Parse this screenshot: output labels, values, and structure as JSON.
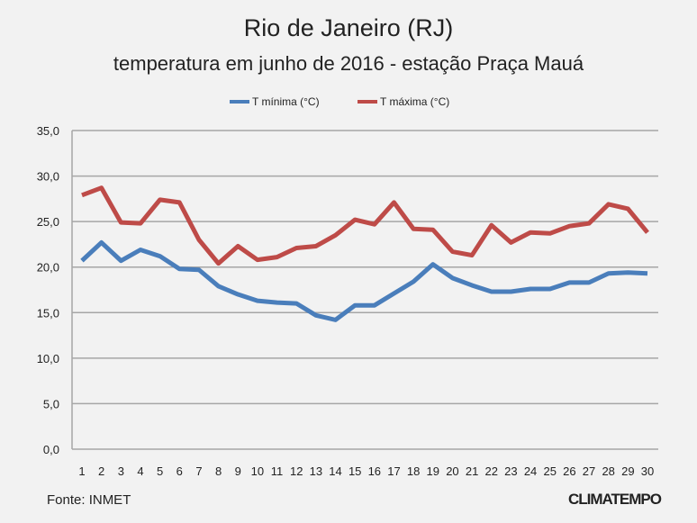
{
  "chart_data": {
    "type": "line",
    "title": "Rio de Janeiro (RJ)",
    "subtitle": "temperatura em junho de 2016 - estação Praça Mauá",
    "xlabel": "",
    "ylabel": "",
    "x": [
      1,
      2,
      3,
      4,
      5,
      6,
      7,
      8,
      9,
      10,
      11,
      12,
      13,
      14,
      15,
      16,
      17,
      18,
      19,
      20,
      21,
      22,
      23,
      24,
      25,
      26,
      27,
      28,
      29,
      30
    ],
    "ylim": [
      0,
      35
    ],
    "yticks": [
      "0,0",
      "5,0",
      "10,0",
      "15,0",
      "20,0",
      "25,0",
      "30,0",
      "35,0"
    ],
    "grid": true,
    "legend_position": "top-center",
    "series": [
      {
        "name": "T mínima (°C)",
        "color": "#4a7ebb",
        "values": [
          20.7,
          22.7,
          20.7,
          21.9,
          21.2,
          19.8,
          19.7,
          17.9,
          17.0,
          16.3,
          16.1,
          16.0,
          14.7,
          14.2,
          15.8,
          15.8,
          17.1,
          18.4,
          20.3,
          18.8,
          18.0,
          17.3,
          17.3,
          17.6,
          17.6,
          18.3,
          18.3,
          19.3,
          19.4,
          19.3
        ]
      },
      {
        "name": "T máxima (°C)",
        "color": "#be4b48",
        "values": [
          27.9,
          28.7,
          24.9,
          24.8,
          27.4,
          27.1,
          23.0,
          20.4,
          22.3,
          20.8,
          21.1,
          22.1,
          22.3,
          23.5,
          25.2,
          24.7,
          27.1,
          24.2,
          24.1,
          21.7,
          21.3,
          24.6,
          22.7,
          23.8,
          23.7,
          24.5,
          24.8,
          26.9,
          26.4,
          23.8
        ]
      }
    ]
  },
  "footer": {
    "source": "Fonte: INMET",
    "logo": "CLIMATEMPO"
  }
}
